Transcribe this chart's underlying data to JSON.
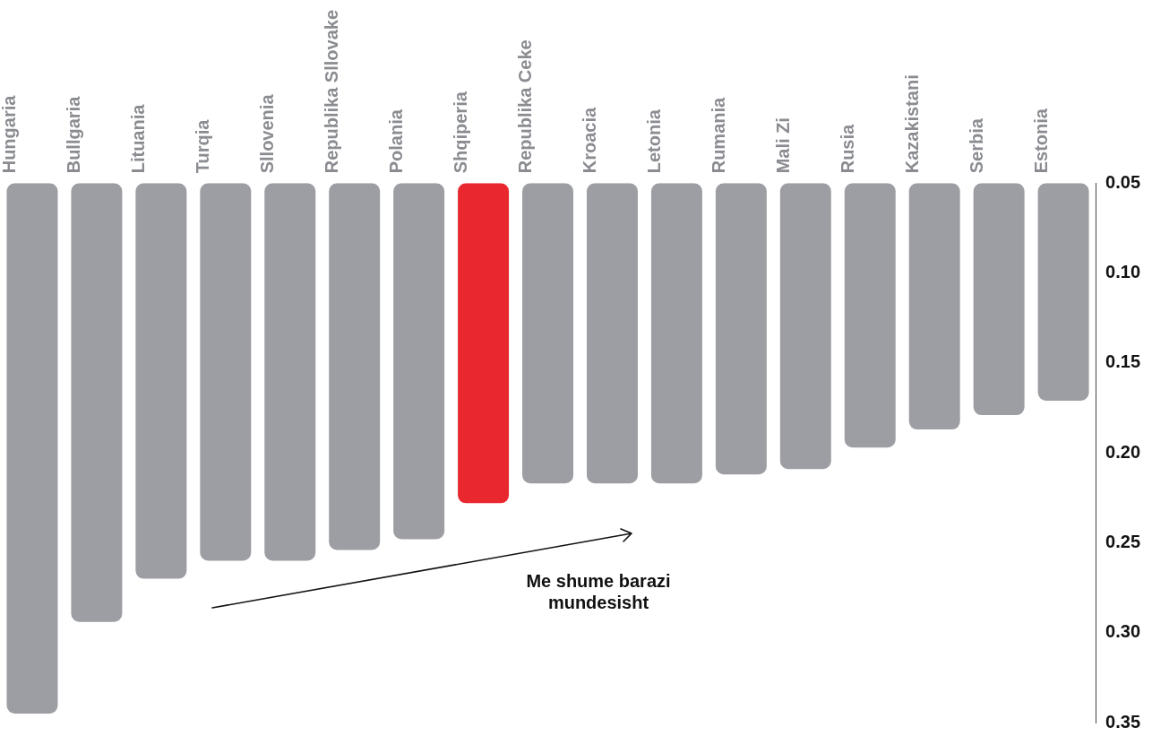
{
  "chart_data": {
    "type": "bar",
    "categories": [
      "Hungaria",
      "Bullgaria",
      "Lituania",
      "Turqia",
      "Sllovenia",
      "Republika Sllovake",
      "Polania",
      "Shqiperia",
      "Republika Ceke",
      "Kroacia",
      "Letonia",
      "Rumania",
      "Mali Zi",
      "Rusia",
      "Kazakistani",
      "Serbia",
      "Estonia"
    ],
    "values": [
      0.345,
      0.294,
      0.27,
      0.26,
      0.26,
      0.254,
      0.248,
      0.228,
      0.217,
      0.217,
      0.217,
      0.212,
      0.209,
      0.197,
      0.187,
      0.179,
      0.171
    ],
    "colors": [
      "#9c9ea3",
      "#9c9ea3",
      "#9c9ea3",
      "#9c9ea3",
      "#9c9ea3",
      "#9c9ea3",
      "#9c9ea3",
      "#e8282e",
      "#9c9ea3",
      "#9c9ea3",
      "#9c9ea3",
      "#9c9ea3",
      "#9c9ea3",
      "#9c9ea3",
      "#9c9ea3",
      "#9c9ea3",
      "#9c9ea3"
    ],
    "ylim": [
      0.35,
      0.05
    ],
    "yticks": [
      {
        "value": 0.05,
        "label": "0.05"
      },
      {
        "value": 0.1,
        "label": "0.10"
      },
      {
        "value": 0.15,
        "label": "0.15"
      },
      {
        "value": 0.2,
        "label": "0.20"
      },
      {
        "value": 0.25,
        "label": "0.25"
      },
      {
        "value": 0.3,
        "label": "0.30"
      },
      {
        "value": 0.35,
        "label": "0.35"
      }
    ],
    "annotations": [
      "Me shume barazi mundesisht"
    ]
  }
}
